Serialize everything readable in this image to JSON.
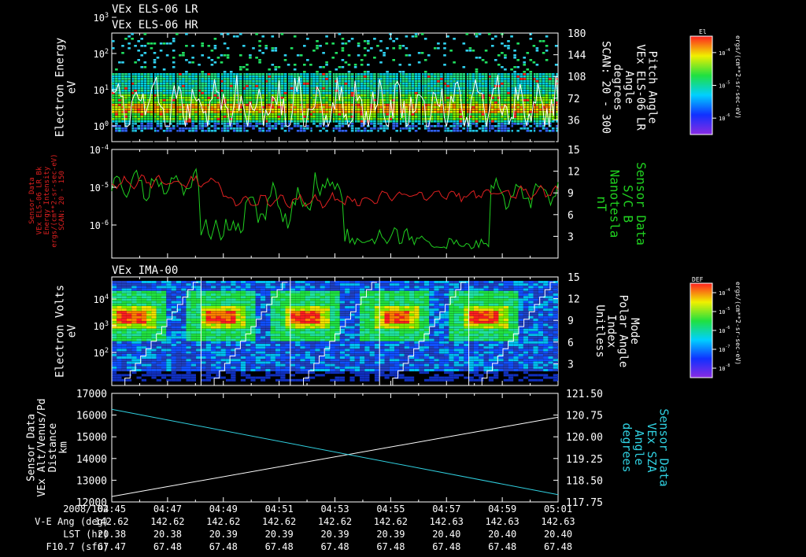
{
  "titles": {
    "p1_line1": "VEx ELS-06 LR",
    "p1_line2": "VEx ELS-06 HR",
    "p3": "VEx IMA-00"
  },
  "colors": {
    "white": "#ffffff",
    "red": "#e02020",
    "green": "#20d020",
    "cyan": "#30d0e0"
  },
  "chart_data": [
    {
      "type": "heatmap",
      "title": "VEx ELS-06 LR / VEx ELS-06 HR",
      "ylabel": "Electron Energy",
      "yunit": "eV",
      "yscale": "log",
      "y_ticks": [
        "10^0",
        "10^1",
        "10^2",
        "10^3"
      ],
      "y2label": [
        "Pitch Angle",
        "VEx ELS-06 LR",
        "Angle",
        "degrees",
        "SCAN: 20 - 300"
      ],
      "y2_ticks": [
        "36",
        "72",
        "108",
        "144",
        "180"
      ],
      "y2_range": [
        0,
        180
      ],
      "colorbar": {
        "label": "El",
        "unit": "ergs/(cm**2-sr-sec-eV)",
        "ticks": [
          "10^-4",
          "10^-5",
          "10^-6"
        ]
      }
    },
    {
      "type": "line",
      "ylabel": [
        "Sensor Data",
        "VEx ELS-06 LR Bk",
        "Energy Intensity",
        "ergs/(cm**2-sr-sec-eV)",
        "SCAN: 20 - 150"
      ],
      "yscale": "log",
      "y_ticks": [
        "10^-4",
        "10^-5",
        "10^-6"
      ],
      "y2label": [
        "Sensor Data",
        "S/C B",
        "Nanotesla",
        "nT"
      ],
      "y2_ticks": [
        "3",
        "6",
        "9",
        "12",
        "15"
      ],
      "y2_range": [
        0,
        15
      ],
      "series": [
        {
          "name": "Energy Intensity",
          "axis": "left",
          "color": "red"
        },
        {
          "name": "S/C B",
          "axis": "right",
          "color": "green"
        }
      ]
    },
    {
      "type": "heatmap",
      "title": "VEx IMA-00",
      "ylabel": "Electron Volts",
      "yunit": "eV",
      "yscale": "log",
      "y_ticks": [
        "10^2",
        "10^3",
        "10^4"
      ],
      "y2label": [
        "Mode",
        "Polar Angle",
        "Index",
        "Unitless"
      ],
      "y2_ticks": [
        "3",
        "6",
        "9",
        "12",
        "15"
      ],
      "y2_range": [
        0,
        15
      ],
      "colorbar": {
        "label": "DEF",
        "unit": "ergs/(cm**2-sr-sec-eV)",
        "ticks": [
          "10^-4",
          "10^-5",
          "10^-6",
          "10^-7",
          "10^-8"
        ]
      }
    },
    {
      "type": "line",
      "ylabel": [
        "Sensor Data",
        "VEx Alt/Venus/Pd",
        "Distance",
        "km"
      ],
      "y_ticks": [
        "12000",
        "13000",
        "14000",
        "15000",
        "16000",
        "17000"
      ],
      "ylim": [
        12000,
        17000
      ],
      "y2label": [
        "Sensor Data",
        "VEx SZA",
        "Angle",
        "degrees"
      ],
      "y2_ticks": [
        "117.75",
        "118.50",
        "119.25",
        "120.00",
        "120.75",
        "121.50"
      ],
      "y2lim": [
        117.75,
        121.5
      ],
      "series": [
        {
          "name": "VEx Alt/Venus/Pd",
          "axis": "left",
          "color": "white",
          "x": [
            0,
            16
          ],
          "y": [
            12250,
            15900
          ]
        },
        {
          "name": "VEx SZA",
          "axis": "right",
          "color": "cyan",
          "x": [
            0,
            16
          ],
          "y": [
            120.95,
            118.0
          ]
        }
      ]
    }
  ],
  "x_axis": {
    "date": "2008/102",
    "ticks": [
      "04:45",
      "04:47",
      "04:49",
      "04:51",
      "04:53",
      "04:55",
      "04:57",
      "04:59",
      "05:01"
    ],
    "rows": [
      {
        "label": "V-E Ang (deg)",
        "values": [
          "142.62",
          "142.62",
          "142.62",
          "142.62",
          "142.62",
          "142.62",
          "142.63",
          "142.63",
          "142.63"
        ]
      },
      {
        "label": "LST (hr)",
        "values": [
          "20.38",
          "20.38",
          "20.39",
          "20.39",
          "20.39",
          "20.39",
          "20.40",
          "20.40",
          "20.40"
        ]
      },
      {
        "label": "F10.7 (sfu)",
        "values": [
          "67.47",
          "67.48",
          "67.48",
          "67.48",
          "67.48",
          "67.48",
          "67.48",
          "67.48",
          "67.48"
        ]
      }
    ]
  }
}
